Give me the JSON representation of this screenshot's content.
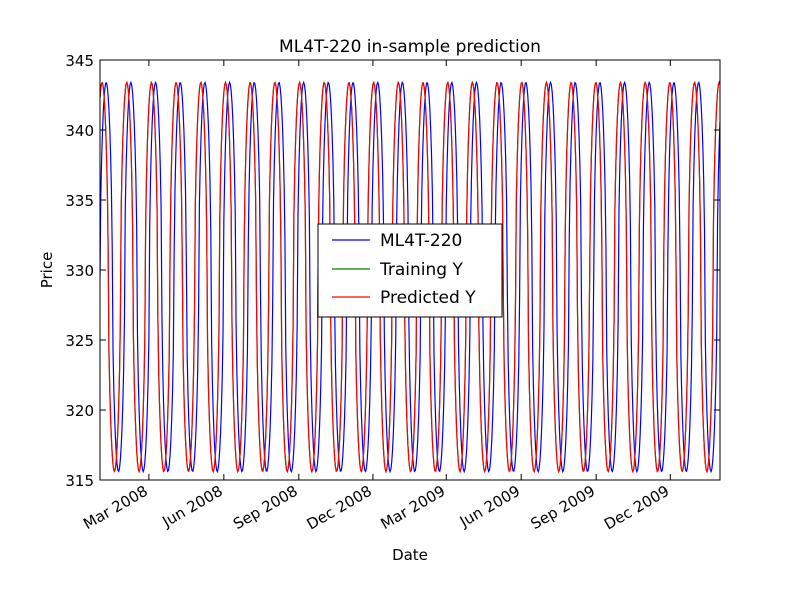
{
  "chart_data": {
    "type": "line",
    "title": "ML4T-220 in-sample prediction",
    "xlabel": "Date",
    "ylabel": "Price",
    "x_range": [
      "2008-01-01",
      "2010-01-31"
    ],
    "ylim": [
      315,
      345
    ],
    "y_ticks": [
      315,
      320,
      325,
      330,
      335,
      340,
      345
    ],
    "x_ticks": [
      {
        "date": "2008-03-01",
        "label": "Mar 2008"
      },
      {
        "date": "2008-06-01",
        "label": "Jun 2008"
      },
      {
        "date": "2008-09-01",
        "label": "Sep 2008"
      },
      {
        "date": "2008-12-01",
        "label": "Dec 2008"
      },
      {
        "date": "2009-03-01",
        "label": "Mar 2009"
      },
      {
        "date": "2009-06-01",
        "label": "Jun 2009"
      },
      {
        "date": "2009-09-01",
        "label": "Sep 2009"
      },
      {
        "date": "2009-12-01",
        "label": "Dec 2009"
      }
    ],
    "grid": false,
    "legend_position": "center-right",
    "series": [
      {
        "name": "ML4T-220",
        "color": "#0000ff",
        "x_start": "2008-01-01",
        "x_end": "2010-01-31",
        "period_days": 30.3,
        "phase_days": 0,
        "min": 315.6,
        "max": 343.4
      },
      {
        "name": "Training Y",
        "color": "#008000",
        "x_start": "2008-01-01",
        "x_end": "2010-01-31",
        "period_days": 30.3,
        "phase_days": -5,
        "min": 315.6,
        "max": 343.4
      },
      {
        "name": "Predicted Y",
        "color": "#ff0000",
        "x_start": "2008-01-01",
        "x_end": "2010-01-31",
        "period_days": 30.3,
        "phase_days": -5,
        "min": 315.6,
        "max": 343.4
      }
    ]
  }
}
